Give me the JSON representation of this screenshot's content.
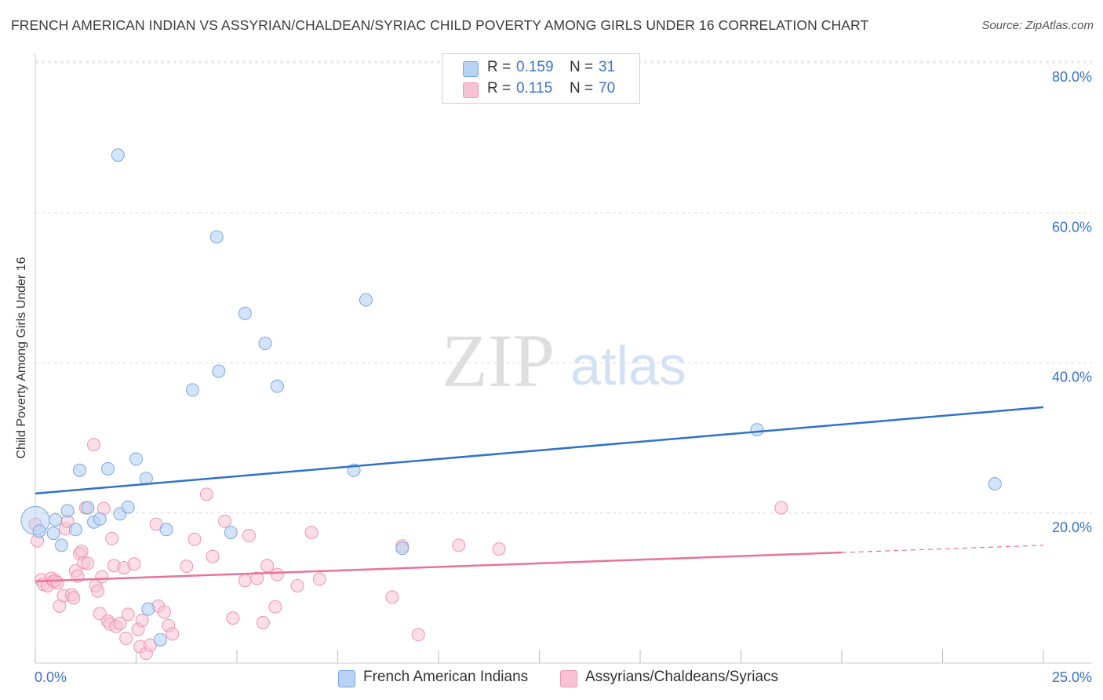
{
  "header": {
    "title": "FRENCH AMERICAN INDIAN VS ASSYRIAN/CHALDEAN/SYRIAC CHILD POVERTY AMONG GIRLS UNDER 16 CORRELATION CHART",
    "source": "Source: ZipAtlas.com"
  },
  "watermark": {
    "part1": "ZIP",
    "part2": "atlas"
  },
  "legend": {
    "rows": [
      {
        "r_label": "R =",
        "r_value": "0.159",
        "n_label": "N =",
        "n_value": "31"
      },
      {
        "r_label": "R =",
        "r_value": "0.115",
        "n_label": "N =",
        "n_value": "70"
      }
    ],
    "bottom": [
      "French American Indians",
      "Assyrians/Chaldeans/Syriacs"
    ]
  },
  "colors": {
    "blue_fill": "#b8d2f3",
    "blue_stroke": "#7aa7e0",
    "blue_line": "#2f72c9",
    "pink_fill": "#f7c3d4",
    "pink_stroke": "#ec95b2",
    "pink_line": "#e8729a",
    "tick_text": "#3a73c9",
    "grid": "#d9d9d9"
  },
  "chart_data": {
    "type": "scatter",
    "title": "FRENCH AMERICAN INDIAN VS ASSYRIAN/CHALDEAN/SYRIAC CHILD POVERTY AMONG GIRLS UNDER 16 CORRELATION CHART",
    "ylabel": "Child Poverty Among Girls Under 16",
    "xlim": [
      0,
      25
    ],
    "ylim": [
      0,
      80
    ],
    "x_ticks": [
      "0.0%",
      "25.0%"
    ],
    "y_ticks": [
      {
        "value": 20,
        "label": "20.0%"
      },
      {
        "value": 40,
        "label": "40.0%"
      },
      {
        "value": 60,
        "label": "60.0%"
      },
      {
        "value": 80,
        "label": "80.0%"
      }
    ],
    "grid": "horizontal dashed",
    "series": [
      {
        "name": "French American Indians",
        "r": 0.159,
        "n": 31,
        "trend": {
          "x": [
            0,
            25
          ],
          "y": [
            22.6,
            34.1
          ]
        },
        "points": [
          [
            0.1,
            17.6
          ],
          [
            0.45,
            17.3
          ],
          [
            0.5,
            19.1
          ],
          [
            0.65,
            15.7
          ],
          [
            0.8,
            20.3
          ],
          [
            1.0,
            17.8
          ],
          [
            1.1,
            25.7
          ],
          [
            1.3,
            20.7
          ],
          [
            1.45,
            18.8
          ],
          [
            1.6,
            19.2
          ],
          [
            1.8,
            25.9
          ],
          [
            2.05,
            67.7
          ],
          [
            2.1,
            19.9
          ],
          [
            2.3,
            20.8
          ],
          [
            2.5,
            27.2
          ],
          [
            2.75,
            24.6
          ],
          [
            2.8,
            7.2
          ],
          [
            3.1,
            3.1
          ],
          [
            3.25,
            17.8
          ],
          [
            3.9,
            36.4
          ],
          [
            4.5,
            56.8
          ],
          [
            4.55,
            38.9
          ],
          [
            4.85,
            17.4
          ],
          [
            5.2,
            46.6
          ],
          [
            5.7,
            42.6
          ],
          [
            6.0,
            36.9
          ],
          [
            7.9,
            25.7
          ],
          [
            8.2,
            48.4
          ],
          [
            9.1,
            15.3
          ],
          [
            17.9,
            31.1
          ],
          [
            23.8,
            23.9
          ]
        ],
        "big_point": [
          0.0,
          19.0
        ]
      },
      {
        "name": "Assyrians/Chaldeans/Syriacs",
        "r": 0.115,
        "n": 70,
        "trend": {
          "x": [
            0,
            25
          ],
          "y": [
            10.9,
            15.7
          ],
          "solid_until_x": 20
        },
        "points": [
          [
            0.05,
            16.3
          ],
          [
            0.15,
            11.1
          ],
          [
            0.2,
            10.5
          ],
          [
            0.3,
            10.3
          ],
          [
            0.4,
            11.3
          ],
          [
            0.45,
            10.9
          ],
          [
            0.5,
            11.0
          ],
          [
            0.55,
            10.7
          ],
          [
            0.6,
            7.6
          ],
          [
            0.7,
            9.0
          ],
          [
            0.75,
            17.9
          ],
          [
            0.8,
            18.9
          ],
          [
            0.9,
            9.1
          ],
          [
            0.95,
            8.7
          ],
          [
            1.0,
            12.3
          ],
          [
            1.05,
            11.6
          ],
          [
            1.1,
            14.6
          ],
          [
            1.15,
            14.9
          ],
          [
            1.2,
            13.4
          ],
          [
            1.25,
            20.7
          ],
          [
            1.3,
            13.3
          ],
          [
            1.45,
            29.1
          ],
          [
            1.5,
            10.3
          ],
          [
            1.55,
            9.6
          ],
          [
            1.6,
            6.6
          ],
          [
            1.65,
            11.5
          ],
          [
            1.7,
            20.6
          ],
          [
            1.8,
            5.6
          ],
          [
            1.85,
            5.2
          ],
          [
            1.9,
            16.6
          ],
          [
            1.95,
            13.0
          ],
          [
            2.0,
            4.9
          ],
          [
            2.1,
            5.3
          ],
          [
            2.2,
            12.7
          ],
          [
            2.25,
            3.3
          ],
          [
            2.3,
            6.5
          ],
          [
            2.45,
            13.2
          ],
          [
            2.55,
            4.5
          ],
          [
            2.6,
            2.2
          ],
          [
            2.65,
            5.7
          ],
          [
            2.75,
            1.3
          ],
          [
            2.85,
            2.4
          ],
          [
            3.0,
            18.5
          ],
          [
            3.05,
            7.6
          ],
          [
            3.2,
            6.8
          ],
          [
            3.3,
            5.0
          ],
          [
            3.4,
            3.9
          ],
          [
            3.75,
            12.9
          ],
          [
            3.95,
            16.5
          ],
          [
            4.25,
            22.5
          ],
          [
            4.4,
            14.2
          ],
          [
            4.7,
            18.9
          ],
          [
            4.9,
            6.0
          ],
          [
            5.3,
            17.0
          ],
          [
            5.2,
            11.0
          ],
          [
            5.5,
            11.3
          ],
          [
            5.65,
            5.4
          ],
          [
            5.75,
            13.0
          ],
          [
            5.95,
            7.5
          ],
          [
            6.0,
            11.8
          ],
          [
            6.5,
            10.3
          ],
          [
            6.85,
            17.4
          ],
          [
            7.05,
            11.2
          ],
          [
            8.85,
            8.8
          ],
          [
            9.1,
            15.6
          ],
          [
            9.5,
            3.8
          ],
          [
            10.5,
            15.7
          ],
          [
            11.5,
            15.2
          ],
          [
            18.5,
            20.7
          ],
          [
            0.0,
            18.5
          ]
        ]
      }
    ]
  }
}
